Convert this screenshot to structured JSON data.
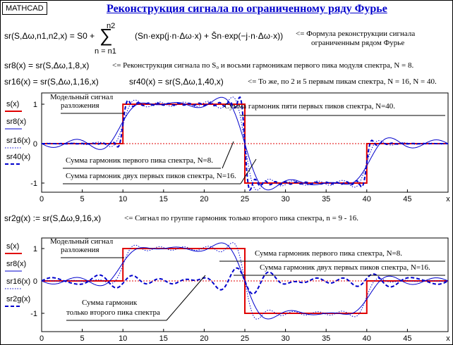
{
  "badge": "MATHCAD",
  "title": "Реконструкция сигнала по ограниченному ряду Фурье",
  "formula": {
    "lhs": "sr(S,Δω,n1,n2,x) = S0 +",
    "sum_top": "n2",
    "sum_bottom": "n = n1",
    "body": "(Sn·exp(j·n·Δω·x) + S̄n·exp(−j·n·Δω·x))",
    "comment_1": "<= Формула реконструкции сигнала",
    "comment_2": "ограниченным рядом Фурье"
  },
  "def_sr8": {
    "expr": "sr8(x) = sr(S,Δω,1,8,x)",
    "comment": "<= Реконструкция сигнала по S₀ и восьми гармоникам первого пика модуля спектра, N = 8."
  },
  "def_sr16": {
    "expr": "sr16(x) = sr(S,Δω,1,16,x)"
  },
  "def_sr40": {
    "expr": "sr40(x) = sr(S,Δω,1,40,x)",
    "comment": "<= То же, по 2 и 5 первым пикам спектра, N = 16, N = 40."
  },
  "def_sr2g": {
    "expr": "sr2g(x) := sr(S,Δω,9,16,x)",
    "comment": "<= Сигнал по группе гармоник только второго пика спектра, n = 9 - 16."
  },
  "colors": {
    "signal": "#e00000",
    "series": "#0000cc"
  },
  "chart_data": [
    {
      "type": "line",
      "xlabel": "x",
      "xlim": [
        0,
        50
      ],
      "ylim": [
        -1.3,
        1.3
      ],
      "xticks": [
        0,
        5,
        10,
        15,
        20,
        25,
        30,
        35,
        40,
        45
      ],
      "yticks": [
        1,
        0,
        -1
      ],
      "signal": {
        "name": "s(x)",
        "breakpoints": [
          [
            0,
            0
          ],
          [
            10,
            1
          ],
          [
            25,
            -1
          ],
          [
            40,
            0
          ],
          [
            50,
            0
          ]
        ]
      },
      "series": [
        {
          "name": "s(x)",
          "style": "solid-thick-red"
        },
        {
          "name": "sr8(x)",
          "n1": 1,
          "n2": 8,
          "style": "solid"
        },
        {
          "name": "sr16(x)",
          "n1": 1,
          "n2": 16,
          "style": "dotted"
        },
        {
          "name": "sr40(x)",
          "n1": 1,
          "n2": 40,
          "style": "dashed"
        }
      ],
      "annotations": [
        "Модельный сигнал",
        "разложения",
        "Сумма гармоник пяти первых пиков спектра, N=40.",
        "Сумма гармоник первого пика спектра, N=8.",
        "Сумма гармоник двух первых пиков спектра, N=16."
      ]
    },
    {
      "type": "line",
      "xlabel": "x",
      "xlim": [
        0,
        50
      ],
      "ylim": [
        -1.3,
        1.3
      ],
      "xticks": [
        0,
        5,
        10,
        15,
        20,
        25,
        30,
        35,
        40,
        45
      ],
      "yticks": [
        1,
        0,
        -1
      ],
      "series": [
        {
          "name": "s(x)",
          "style": "solid-thick-red"
        },
        {
          "name": "sr8(x)",
          "n1": 1,
          "n2": 8,
          "style": "solid"
        },
        {
          "name": "sr16(x)",
          "n1": 1,
          "n2": 16,
          "style": "dotted"
        },
        {
          "name": "sr2g(x)",
          "n1": 9,
          "n2": 16,
          "style": "dashed"
        }
      ],
      "annotations": [
        "Модельный сигнал",
        "разложения",
        "Сумма гармоник первого пика спектра, N=8.",
        "Сумма гармоник двух первых пиков спектра, N=16.",
        "Сумма гармоник",
        "только второго пика спектра"
      ]
    }
  ]
}
